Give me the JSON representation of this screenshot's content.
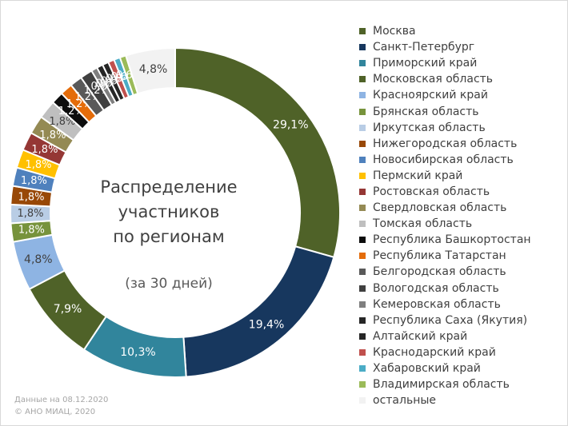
{
  "chart_data": {
    "type": "pie",
    "variant": "donut",
    "title": "Распределение участников по регионам",
    "title_lines": [
      "Распределение",
      "участников",
      "по регионам"
    ],
    "subtitle": "(за 30 дней)",
    "legend_position": "right",
    "categories": [
      "Москва",
      "Санкт-Петербург",
      "Приморский край",
      "Московская область",
      "Красноярский край",
      "Брянская область",
      "Иркутская область",
      "Нижегородская область",
      "Новосибирская область",
      "Пермский край",
      "Ростовская область",
      "Свердловская область",
      "Томская область",
      "Республика Башкортостан",
      "Республика Татарстан",
      "Белгородская область",
      "Вологодская область",
      "Кемеровская область",
      "Республика Саха (Якутия)",
      "Алтайский край",
      "Краснодарский край",
      "Хабаровский край",
      "Владимирская область",
      "остальные"
    ],
    "values": [
      29.1,
      19.4,
      10.3,
      7.9,
      4.8,
      1.8,
      1.8,
      1.8,
      1.8,
      1.8,
      1.8,
      1.8,
      1.8,
      1.2,
      1.2,
      1.2,
      1.2,
      0.6,
      0.6,
      0.6,
      0.6,
      0.6,
      0.6,
      4.8
    ],
    "data_labels": [
      "29,1%",
      "19,4%",
      "10,3%",
      "7,9%",
      "4,8%",
      "1,8%",
      "1,8%",
      "1,8%",
      "1,8%",
      "1,8%",
      "1,8%",
      "1,8%",
      "1,8%",
      "1,2%",
      "1,2%",
      "1,2%",
      "1,2%",
      "0,6%",
      "0,6%",
      "0,6%",
      "0,6%",
      "0,6%",
      "0,6%",
      "4,8%"
    ],
    "colors": [
      "#4f6228",
      "#17375e",
      "#31859c",
      "#4f6228",
      "#8eb4e3",
      "#77933c",
      "#b9cde5",
      "#984807",
      "#4f81bd",
      "#ffc000",
      "#953735",
      "#948a54",
      "#bfbfbf",
      "#0d0d0d",
      "#e46c0a",
      "#595959",
      "#404040",
      "#7f7f7f",
      "#262626",
      "#262626",
      "#c0504d",
      "#4bacc6",
      "#9bbb59",
      "#f2f2f2"
    ]
  },
  "footnote": {
    "date_line": "Данные на 08.12.2020",
    "copyright_line": "© АНО МИАЦ, 2020"
  }
}
